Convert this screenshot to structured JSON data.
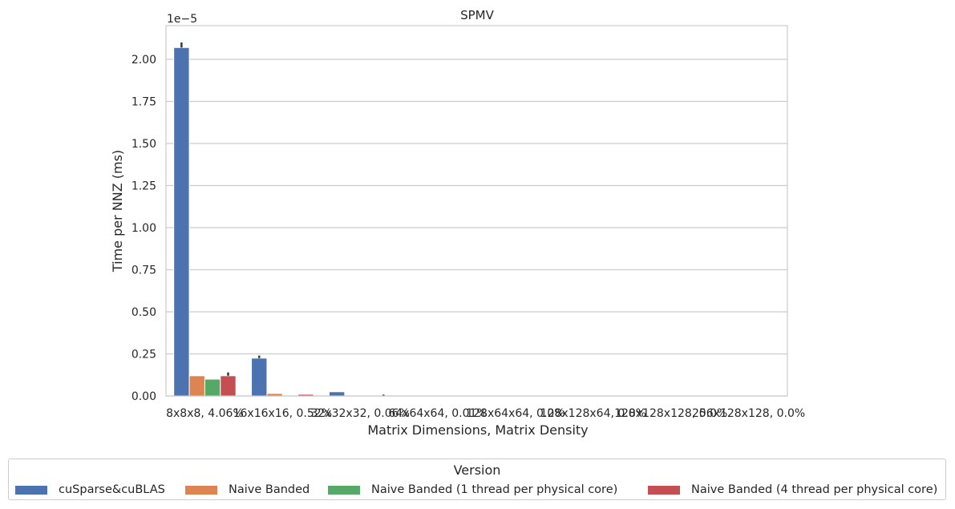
{
  "chart_data": {
    "type": "bar",
    "title": "SPMV",
    "xlabel": "Matrix Dimensions, Matrix Density",
    "ylabel": "Time per NNZ (ms)",
    "y_offset_label": "1e−5",
    "ylim": [
      0,
      2.2
    ],
    "yticks": [
      "0.00",
      "0.25",
      "0.50",
      "0.75",
      "1.00",
      "1.25",
      "1.50",
      "1.75",
      "2.00"
    ],
    "grid": true,
    "legend_placement": "bottom-center",
    "categories": [
      "8x8x8, 4.06%",
      "16x16x16, 0.52%",
      "32x32x32, 0.06%",
      "64x64x64, 0.01%",
      "128x64x64, 0.0%",
      "128x128x64, 0.0%",
      "128x128x128, 0.0%",
      "256x128x128, 0.0%"
    ],
    "series": [
      {
        "name": "cuSparse&cuBLAS",
        "color": "#4c72b0",
        "values": [
          2.07,
          0.225,
          0.025,
          0.0,
          0.0,
          0.0,
          0.0,
          0.0
        ],
        "err_high": [
          2.1,
          0.24,
          null,
          null,
          null,
          null,
          null,
          null
        ]
      },
      {
        "name": "Naive Banded",
        "color": "#dd8452",
        "values": [
          0.12,
          0.015,
          0.0,
          0.0,
          0.0,
          0.0,
          0.0,
          0.0
        ],
        "err_high": [
          null,
          null,
          null,
          null,
          null,
          null,
          null,
          null
        ]
      },
      {
        "name": "Naive Banded (1 thread per physical core)",
        "color": "#55a868",
        "values": [
          0.1,
          0.0,
          0.0,
          0.0,
          0.0,
          0.0,
          0.0,
          0.0
        ],
        "err_high": [
          null,
          null,
          null,
          null,
          null,
          null,
          null,
          null
        ]
      },
      {
        "name": "Naive Banded (4 thread per physical core)",
        "color": "#c44e52",
        "values": [
          0.12,
          0.01,
          0.0,
          0.0,
          0.0,
          0.0,
          0.0,
          0.0
        ],
        "err_high": [
          0.14,
          null,
          0.008,
          null,
          null,
          null,
          null,
          null
        ]
      }
    ]
  },
  "legend": {
    "title": "Version",
    "items": [
      {
        "label": "cuSparse&cuBLAS",
        "color": "#4c72b0"
      },
      {
        "label": "Naive Banded",
        "color": "#dd8452"
      },
      {
        "label": "Naive Banded (1 thread per physical core)",
        "color": "#55a868"
      },
      {
        "label": "Naive Banded (4 thread per physical core)",
        "color": "#c44e52"
      }
    ]
  }
}
